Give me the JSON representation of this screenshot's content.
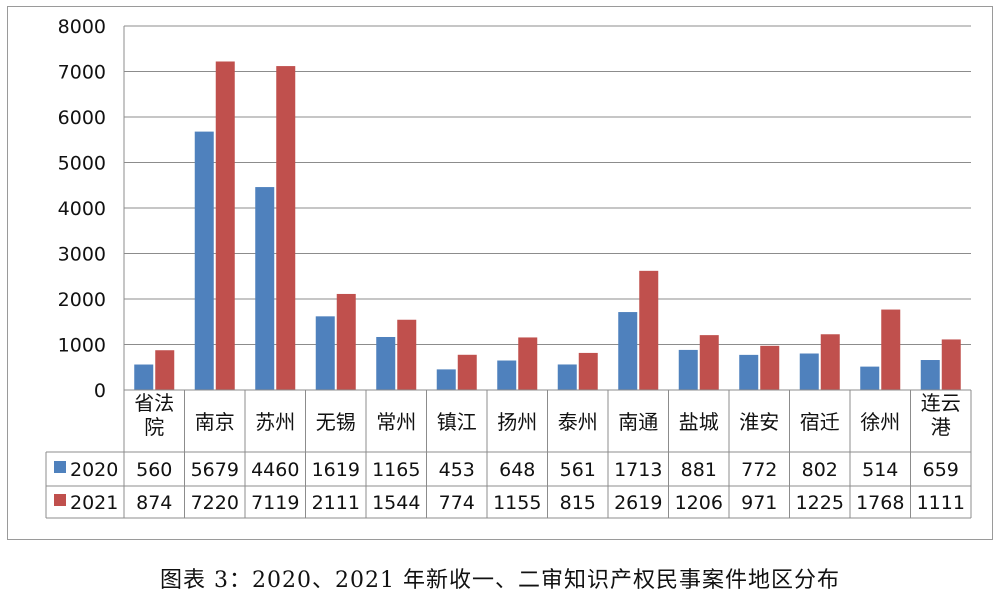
{
  "chart_data": {
    "type": "bar",
    "categories": [
      "省法院",
      "南京",
      "苏州",
      "无锡",
      "常州",
      "镇江",
      "扬州",
      "泰州",
      "南通",
      "盐城",
      "淮安",
      "宿迁",
      "徐州",
      "连云港"
    ],
    "series": [
      {
        "name": "2020",
        "color": "#4f81bd",
        "values": [
          560,
          5679,
          4460,
          1619,
          1165,
          453,
          648,
          561,
          1713,
          881,
          772,
          802,
          514,
          659
        ]
      },
      {
        "name": "2021",
        "color": "#c0504d",
        "values": [
          874,
          7220,
          7119,
          2111,
          1544,
          774,
          1155,
          815,
          2619,
          1206,
          971,
          1225,
          1768,
          1111
        ]
      }
    ],
    "yticks": [
      "0",
      "1000",
      "2000",
      "3000",
      "4000",
      "5000",
      "6000",
      "7000",
      "8000"
    ],
    "ylim": [
      0,
      8000
    ],
    "grid": true,
    "legend": "data-table"
  },
  "caption": {
    "prefix": "图表 3：",
    "text": "2020、2021 年新收一、二审知识产权民事案件地区分布"
  }
}
